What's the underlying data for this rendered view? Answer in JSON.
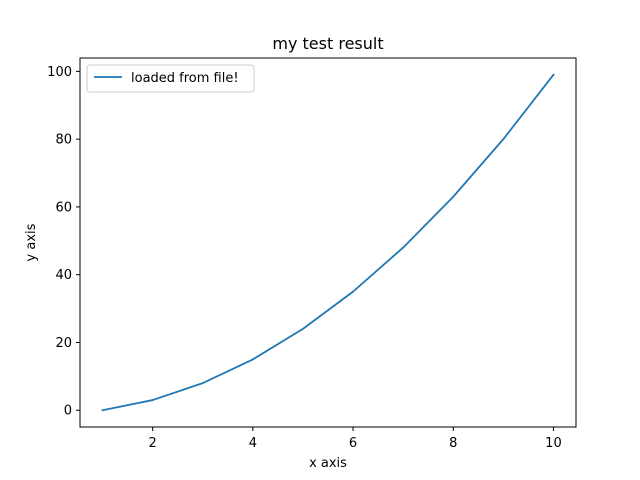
{
  "chart_data": {
    "type": "line",
    "title": "my test result",
    "xlabel": "x axis",
    "ylabel": "y axis",
    "xlim": [
      0.55,
      10.45
    ],
    "ylim": [
      -4.95,
      103.95
    ],
    "xticks": [
      2,
      4,
      6,
      8,
      10
    ],
    "yticks": [
      0,
      20,
      40,
      60,
      80,
      100
    ],
    "grid": false,
    "legend_position": "upper-left",
    "series": [
      {
        "name": "loaded from file!",
        "color": "#1f77b4",
        "x": [
          1,
          2,
          3,
          4,
          5,
          6,
          7,
          8,
          9,
          10
        ],
        "y": [
          0,
          3,
          8,
          15,
          24,
          35,
          48,
          63,
          80,
          99
        ]
      }
    ]
  }
}
